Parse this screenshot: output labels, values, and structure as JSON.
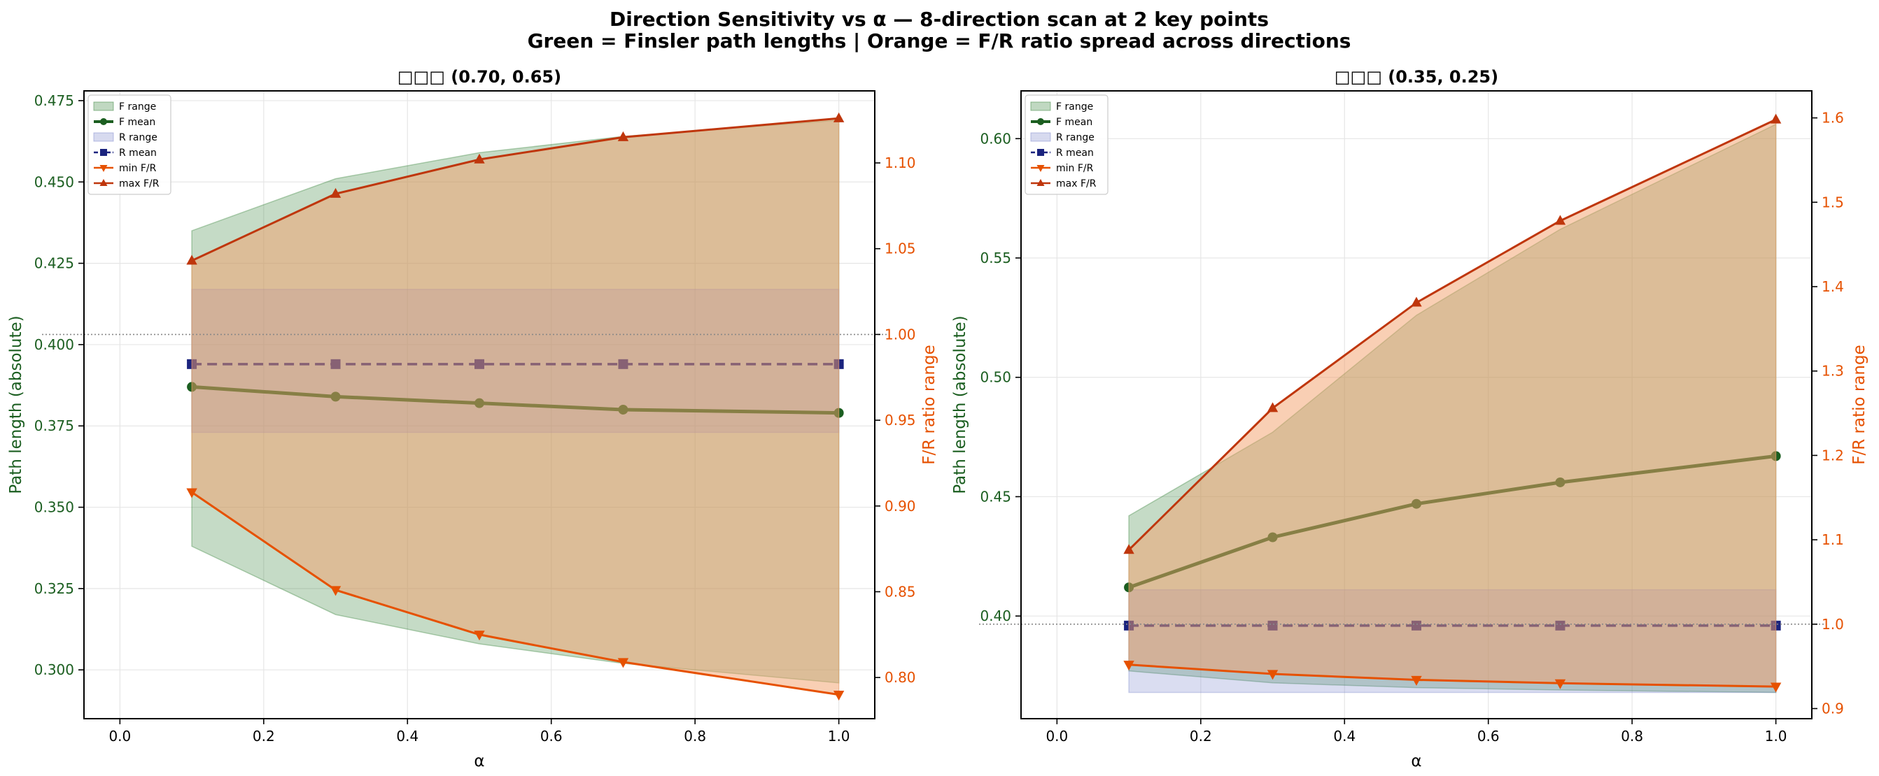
{
  "figure": {
    "title_line1": "Direction Sensitivity vs α — 8-direction scan at 2 key points",
    "title_line2": "Green = Finsler path lengths | Orange = F/R ratio spread across directions"
  },
  "colors": {
    "f_range": "#2e7d32",
    "f_mean": "#1b5e20",
    "r_range": "#7986cb",
    "r_mean": "#1a237e",
    "min_fr": "#e65100",
    "max_fr": "#bf360c",
    "ratio_fill": "#f4a06a",
    "left_axis_text": "#1b5e20",
    "right_axis_text": "#e65100"
  },
  "chart_data": [
    {
      "type": "line",
      "title": "□□□ (0.70, 0.65)",
      "xlabel": "α",
      "ylabel_left": "Path length (absolute)",
      "ylabel_right": "F/R ratio range",
      "xlim": [
        -0.05,
        1.05
      ],
      "ylim_left": [
        0.285,
        0.478
      ],
      "ylim_right": [
        0.776,
        1.142
      ],
      "xticks": [
        0.0,
        0.2,
        0.4,
        0.6,
        0.8,
        1.0
      ],
      "xtick_labels": [
        "0.0",
        "0.2",
        "0.4",
        "0.6",
        "0.8",
        "1.0"
      ],
      "yticks_left": [
        0.3,
        0.325,
        0.35,
        0.375,
        0.4,
        0.425,
        0.45,
        0.475
      ],
      "ytick_labels_left": [
        "0.300",
        "0.325",
        "0.350",
        "0.375",
        "0.400",
        "0.425",
        "0.450",
        "0.475"
      ],
      "yticks_right": [
        0.8,
        0.85,
        0.9,
        0.95,
        1.0,
        1.05,
        1.1
      ],
      "ytick_labels_right": [
        "0.80",
        "0.85",
        "0.90",
        "0.95",
        "1.00",
        "1.05",
        "1.10"
      ],
      "reference_line_right": 1.0,
      "grid": true,
      "legend_position": "top-left",
      "x": [
        0.1,
        0.3,
        0.5,
        0.7,
        1.0
      ],
      "series": [
        {
          "name": "F range",
          "kind": "band",
          "axis": "left",
          "lower": [
            0.338,
            0.317,
            0.308,
            0.302,
            0.296
          ],
          "upper": [
            0.435,
            0.451,
            0.459,
            0.464,
            0.469
          ]
        },
        {
          "name": "F mean",
          "kind": "line",
          "axis": "left",
          "marker": "circle",
          "values": [
            0.387,
            0.384,
            0.382,
            0.38,
            0.379
          ]
        },
        {
          "name": "R range",
          "kind": "band",
          "axis": "left",
          "lower": [
            0.373,
            0.373,
            0.373,
            0.373,
            0.373
          ],
          "upper": [
            0.417,
            0.417,
            0.417,
            0.417,
            0.417
          ]
        },
        {
          "name": "R mean",
          "kind": "line",
          "axis": "left",
          "marker": "square",
          "dashed": true,
          "values": [
            0.394,
            0.394,
            0.394,
            0.394,
            0.394
          ]
        },
        {
          "name": "min F/R",
          "kind": "line",
          "axis": "right",
          "marker": "triangle-down",
          "values": [
            0.908,
            0.851,
            0.825,
            0.809,
            0.79
          ]
        },
        {
          "name": "max F/R",
          "kind": "line",
          "axis": "right",
          "marker": "triangle-up",
          "values": [
            1.043,
            1.082,
            1.102,
            1.115,
            1.126
          ]
        }
      ]
    },
    {
      "type": "line",
      "title": "□□□ (0.35, 0.25)",
      "xlabel": "α",
      "ylabel_left": "Path length (absolute)",
      "ylabel_right": "F/R ratio range",
      "xlim": [
        -0.05,
        1.05
      ],
      "ylim_left": [
        0.357,
        0.62
      ],
      "ylim_right": [
        0.888,
        1.632
      ],
      "xticks": [
        0.0,
        0.2,
        0.4,
        0.6,
        0.8,
        1.0
      ],
      "xtick_labels": [
        "0.0",
        "0.2",
        "0.4",
        "0.6",
        "0.8",
        "1.0"
      ],
      "yticks_left": [
        0.4,
        0.45,
        0.5,
        0.55,
        0.6
      ],
      "ytick_labels_left": [
        "0.40",
        "0.45",
        "0.50",
        "0.55",
        "0.60"
      ],
      "yticks_right": [
        0.9,
        1.0,
        1.1,
        1.2,
        1.3,
        1.4,
        1.5,
        1.6
      ],
      "ytick_labels_right": [
        "0.9",
        "1.0",
        "1.1",
        "1.2",
        "1.3",
        "1.4",
        "1.5",
        "1.6"
      ],
      "reference_line_right": 1.0,
      "grid": true,
      "legend_position": "top-left",
      "x": [
        0.1,
        0.3,
        0.5,
        0.7,
        1.0
      ],
      "series": [
        {
          "name": "F range",
          "kind": "band",
          "axis": "left",
          "lower": [
            0.377,
            0.372,
            0.37,
            0.369,
            0.368
          ],
          "upper": [
            0.442,
            0.477,
            0.526,
            0.562,
            0.606
          ]
        },
        {
          "name": "F mean",
          "kind": "line",
          "axis": "left",
          "marker": "circle",
          "values": [
            0.412,
            0.433,
            0.447,
            0.456,
            0.467
          ]
        },
        {
          "name": "R range",
          "kind": "band",
          "axis": "left",
          "lower": [
            0.368,
            0.368,
            0.368,
            0.368,
            0.368
          ],
          "upper": [
            0.411,
            0.411,
            0.411,
            0.411,
            0.411
          ]
        },
        {
          "name": "R mean",
          "kind": "line",
          "axis": "left",
          "marker": "square",
          "dashed": true,
          "values": [
            0.396,
            0.396,
            0.396,
            0.396,
            0.396
          ]
        },
        {
          "name": "min F/R",
          "kind": "line",
          "axis": "right",
          "marker": "triangle-down",
          "values": [
            0.952,
            0.941,
            0.934,
            0.93,
            0.926
          ]
        },
        {
          "name": "max F/R",
          "kind": "line",
          "axis": "right",
          "marker": "triangle-up",
          "values": [
            1.088,
            1.256,
            1.381,
            1.478,
            1.598
          ]
        }
      ]
    }
  ]
}
